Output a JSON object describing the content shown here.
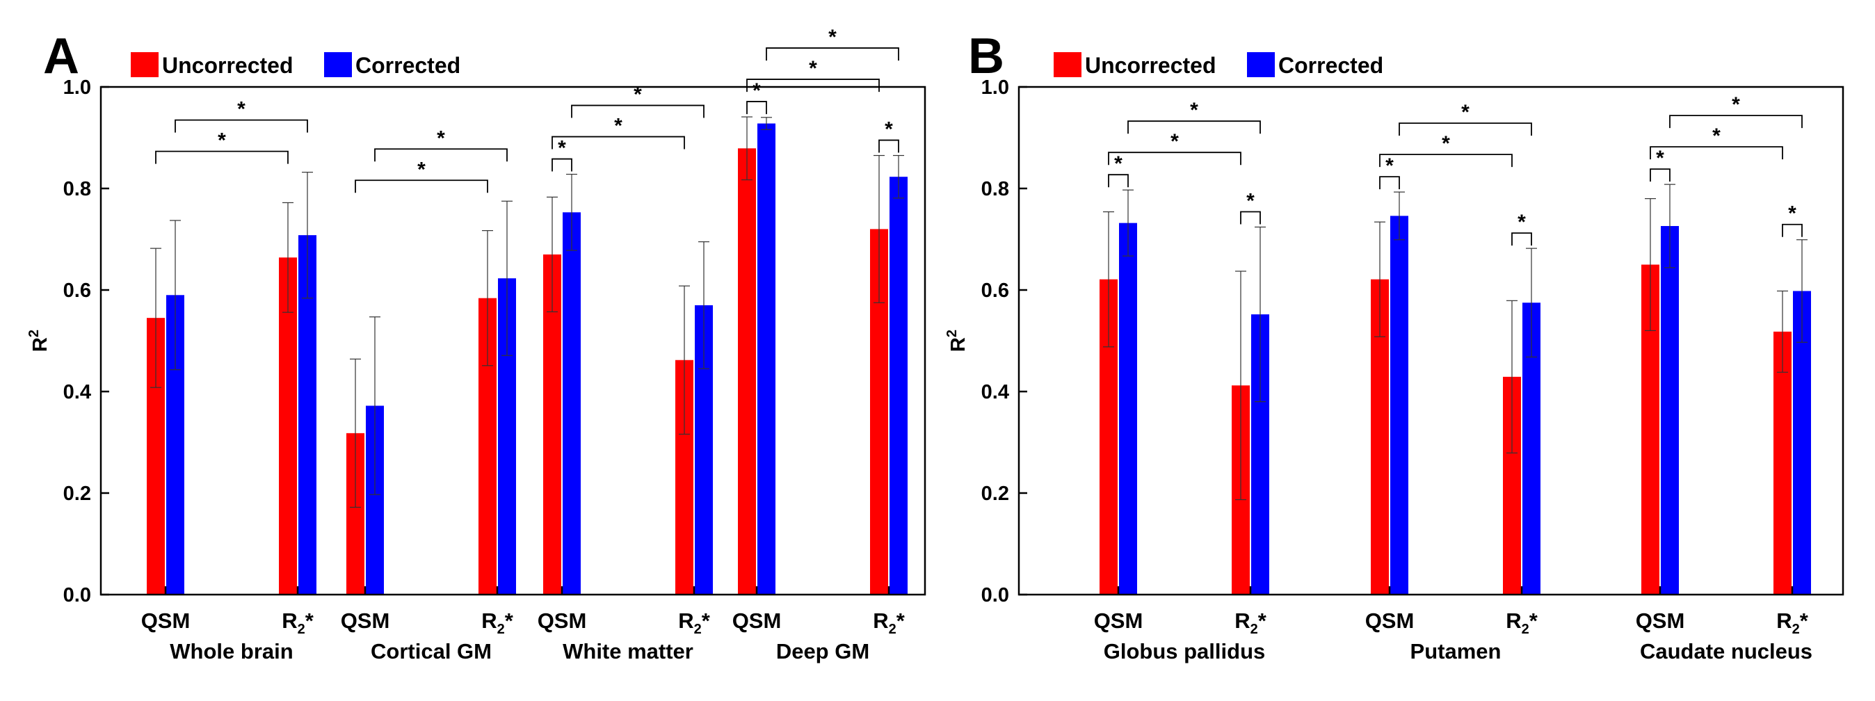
{
  "colors": {
    "uncorrected": "#ff0000",
    "corrected": "#0000ff"
  },
  "legend": {
    "uncorrected_label": "Uncorrected",
    "corrected_label": "Corrected"
  },
  "chart_data": [
    {
      "type": "bar",
      "panel_label": "A",
      "ylabel_base": "R",
      "ylabel_sup": "2",
      "ylim": [
        0,
        1.0
      ],
      "yticks": [
        "0.0",
        "0.2",
        "0.4",
        "0.6",
        "0.8",
        "1.0"
      ],
      "sublabels": [
        "QSM",
        "R2*"
      ],
      "groups": [
        {
          "name": "Whole brain",
          "measures": [
            {
              "uncorrected": 0.545,
              "uncorrected_err": 0.137,
              "corrected": 0.59,
              "corrected_err": 0.147
            },
            {
              "uncorrected": 0.664,
              "uncorrected_err": 0.108,
              "corrected": 0.708,
              "corrected_err": 0.124
            }
          ],
          "pair_stars": [
            false,
            false
          ],
          "cross_stars": [
            true,
            true
          ]
        },
        {
          "name": "Cortical GM",
          "measures": [
            {
              "uncorrected": 0.318,
              "uncorrected_err": 0.146,
              "corrected": 0.372,
              "corrected_err": 0.175
            },
            {
              "uncorrected": 0.584,
              "uncorrected_err": 0.133,
              "corrected": 0.623,
              "corrected_err": 0.152
            }
          ],
          "pair_stars": [
            false,
            false
          ],
          "cross_stars": [
            true,
            true
          ]
        },
        {
          "name": "White matter",
          "measures": [
            {
              "uncorrected": 0.67,
              "uncorrected_err": 0.113,
              "corrected": 0.753,
              "corrected_err": 0.075
            },
            {
              "uncorrected": 0.462,
              "uncorrected_err": 0.146,
              "corrected": 0.57,
              "corrected_err": 0.125
            }
          ],
          "pair_stars": [
            true,
            false
          ],
          "cross_stars": [
            true,
            true
          ]
        },
        {
          "name": "Deep GM",
          "measures": [
            {
              "uncorrected": 0.879,
              "uncorrected_err": 0.062,
              "corrected": 0.928,
              "corrected_err": 0.012
            },
            {
              "uncorrected": 0.72,
              "uncorrected_err": 0.145,
              "corrected": 0.823,
              "corrected_err": 0.042
            }
          ],
          "pair_stars": [
            true,
            true
          ],
          "cross_stars": [
            true,
            true
          ]
        }
      ]
    },
    {
      "type": "bar",
      "panel_label": "B",
      "ylabel_base": "R",
      "ylabel_sup": "2",
      "ylim": [
        0,
        1.0
      ],
      "yticks": [
        "0.0",
        "0.2",
        "0.4",
        "0.6",
        "0.8",
        "1.0"
      ],
      "sublabels": [
        "QSM",
        "R2*"
      ],
      "groups": [
        {
          "name": "Globus pallidus",
          "measures": [
            {
              "uncorrected": 0.621,
              "uncorrected_err": 0.133,
              "corrected": 0.732,
              "corrected_err": 0.065
            },
            {
              "uncorrected": 0.412,
              "uncorrected_err": 0.225,
              "corrected": 0.552,
              "corrected_err": 0.172
            }
          ],
          "pair_stars": [
            true,
            true
          ],
          "cross_stars": [
            true,
            true
          ]
        },
        {
          "name": "Putamen",
          "measures": [
            {
              "uncorrected": 0.621,
              "uncorrected_err": 0.113,
              "corrected": 0.746,
              "corrected_err": 0.047
            },
            {
              "uncorrected": 0.429,
              "uncorrected_err": 0.15,
              "corrected": 0.575,
              "corrected_err": 0.107
            }
          ],
          "pair_stars": [
            true,
            true
          ],
          "cross_stars": [
            true,
            true
          ]
        },
        {
          "name": "Caudate nucleus",
          "measures": [
            {
              "uncorrected": 0.65,
              "uncorrected_err": 0.13,
              "corrected": 0.726,
              "corrected_err": 0.082
            },
            {
              "uncorrected": 0.518,
              "uncorrected_err": 0.08,
              "corrected": 0.598,
              "corrected_err": 0.101
            }
          ],
          "pair_stars": [
            true,
            true
          ],
          "cross_stars": [
            true,
            true
          ]
        }
      ]
    }
  ]
}
